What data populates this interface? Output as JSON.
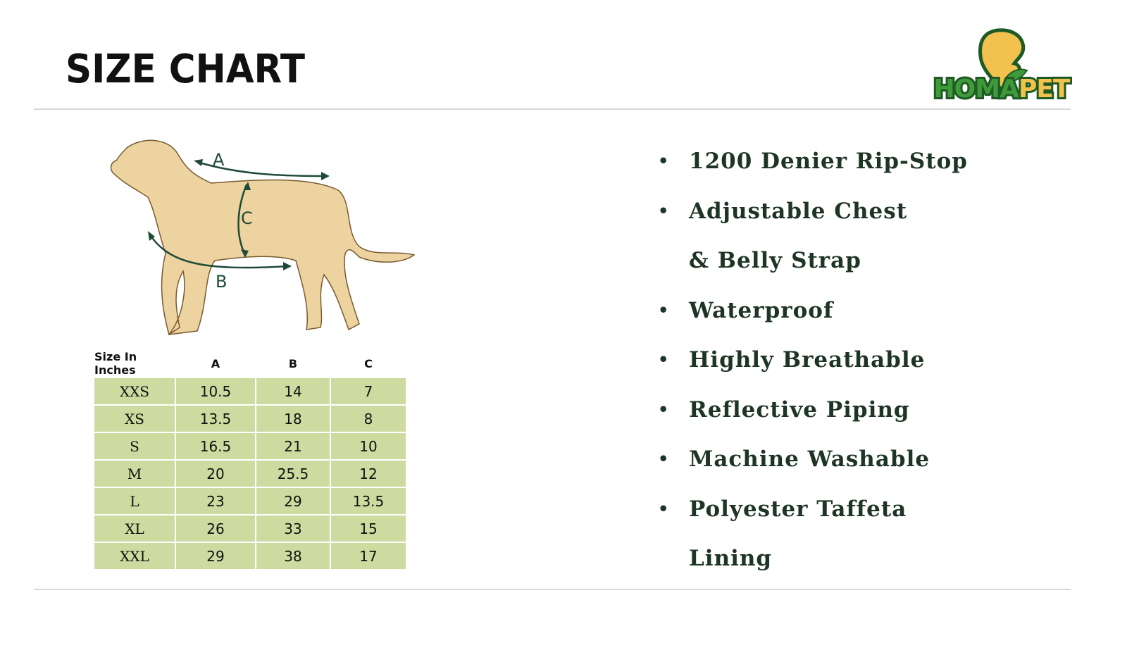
{
  "header": {
    "title": "SIZE CHART",
    "logo_text": "HOMAPET"
  },
  "figure": {
    "labels": {
      "a": "A",
      "b": "B",
      "c": "C"
    }
  },
  "size_table": {
    "headers": [
      "Size In Inches",
      "A",
      "B",
      "C"
    ],
    "rows": [
      [
        "XXS",
        "10.5",
        "14",
        "7"
      ],
      [
        "XS",
        "13.5",
        "18",
        "8"
      ],
      [
        "S",
        "16.5",
        "21",
        "10"
      ],
      [
        "M",
        "20",
        "25.5",
        "12"
      ],
      [
        "L",
        "23",
        "29",
        "13.5"
      ],
      [
        "XL",
        "26",
        "33",
        "15"
      ],
      [
        "XXL",
        "29",
        "38",
        "17"
      ]
    ]
  },
  "features": [
    {
      "lines": [
        "1200 Denier Rip-Stop"
      ]
    },
    {
      "lines": [
        "Adjustable Chest",
        "& Belly Strap"
      ]
    },
    {
      "lines": [
        "Waterproof"
      ]
    },
    {
      "lines": [
        "Highly Breathable"
      ]
    },
    {
      "lines": [
        "Reflective Piping"
      ]
    },
    {
      "lines": [
        "Machine Washable"
      ]
    },
    {
      "lines": [
        "Polyester Taffeta",
        "Lining"
      ]
    }
  ],
  "colors": {
    "table_fill": "#cddba0",
    "feature_text": "#1e3526",
    "logo_green": "#3f9a3a",
    "logo_yellow": "#f2c14e",
    "arrow": "#1f4a38"
  }
}
